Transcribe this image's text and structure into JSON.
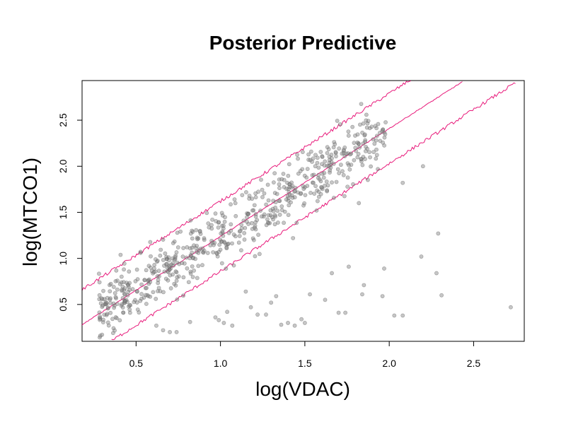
{
  "chart_data": {
    "type": "scatter",
    "title": "Posterior Predictive",
    "xlabel": "log(VDAC)",
    "ylabel": "log(MTCO1)",
    "xlim": [
      0.18,
      2.8
    ],
    "ylim": [
      0.1,
      2.93
    ],
    "xticks": [
      "0.5",
      "1.0",
      "1.5",
      "2.0",
      "2.5"
    ],
    "yticks": [
      "0.5",
      "1.0",
      "1.5",
      "2.0",
      "2.5"
    ],
    "grid": false,
    "colors": {
      "points": "#808080",
      "lines": "#e8197a"
    },
    "series": [
      {
        "kind": "points"
      },
      {
        "kind": "mean-line",
        "intercept": 0.07,
        "slope": 1.17
      },
      {
        "kind": "upper-band",
        "intercept": 0.45,
        "slope": 1.17
      },
      {
        "kind": "lower-band",
        "intercept": -0.31,
        "slope": 1.17
      }
    ],
    "outliers": [
      [
        0.62,
        0.27
      ],
      [
        0.66,
        0.22
      ],
      [
        0.7,
        0.2
      ],
      [
        0.74,
        0.2
      ],
      [
        0.99,
        0.33
      ],
      [
        1.02,
        0.3
      ],
      [
        1.04,
        0.42
      ],
      [
        1.07,
        0.27
      ],
      [
        1.15,
        0.64
      ],
      [
        1.18,
        0.47
      ],
      [
        1.22,
        0.39
      ],
      [
        1.27,
        0.39
      ],
      [
        1.3,
        0.52
      ],
      [
        1.33,
        0.59
      ],
      [
        1.36,
        0.28
      ],
      [
        1.4,
        0.3
      ],
      [
        1.44,
        0.27
      ],
      [
        1.48,
        0.34
      ],
      [
        1.5,
        0.3
      ],
      [
        1.53,
        0.61
      ],
      [
        1.62,
        0.55
      ],
      [
        1.66,
        0.84
      ],
      [
        1.7,
        0.41
      ],
      [
        1.74,
        0.41
      ],
      [
        1.76,
        0.91
      ],
      [
        1.84,
        0.61
      ],
      [
        1.85,
        0.71
      ],
      [
        1.96,
        0.59
      ],
      [
        1.97,
        0.89
      ],
      [
        2.03,
        0.38
      ],
      [
        2.08,
        0.38
      ],
      [
        2.19,
        1.02
      ],
      [
        2.28,
        0.84
      ],
      [
        2.31,
        0.6
      ],
      [
        2.72,
        0.47
      ],
      [
        1.82,
        1.6
      ],
      [
        2.2,
        2.0
      ],
      [
        2.29,
        1.27
      ],
      [
        2.08,
        1.82
      ],
      [
        0.82,
        0.31
      ],
      [
        0.97,
        0.36
      ],
      [
        1.43,
        1.22
      ],
      [
        1.19,
        1.52
      ]
    ]
  }
}
